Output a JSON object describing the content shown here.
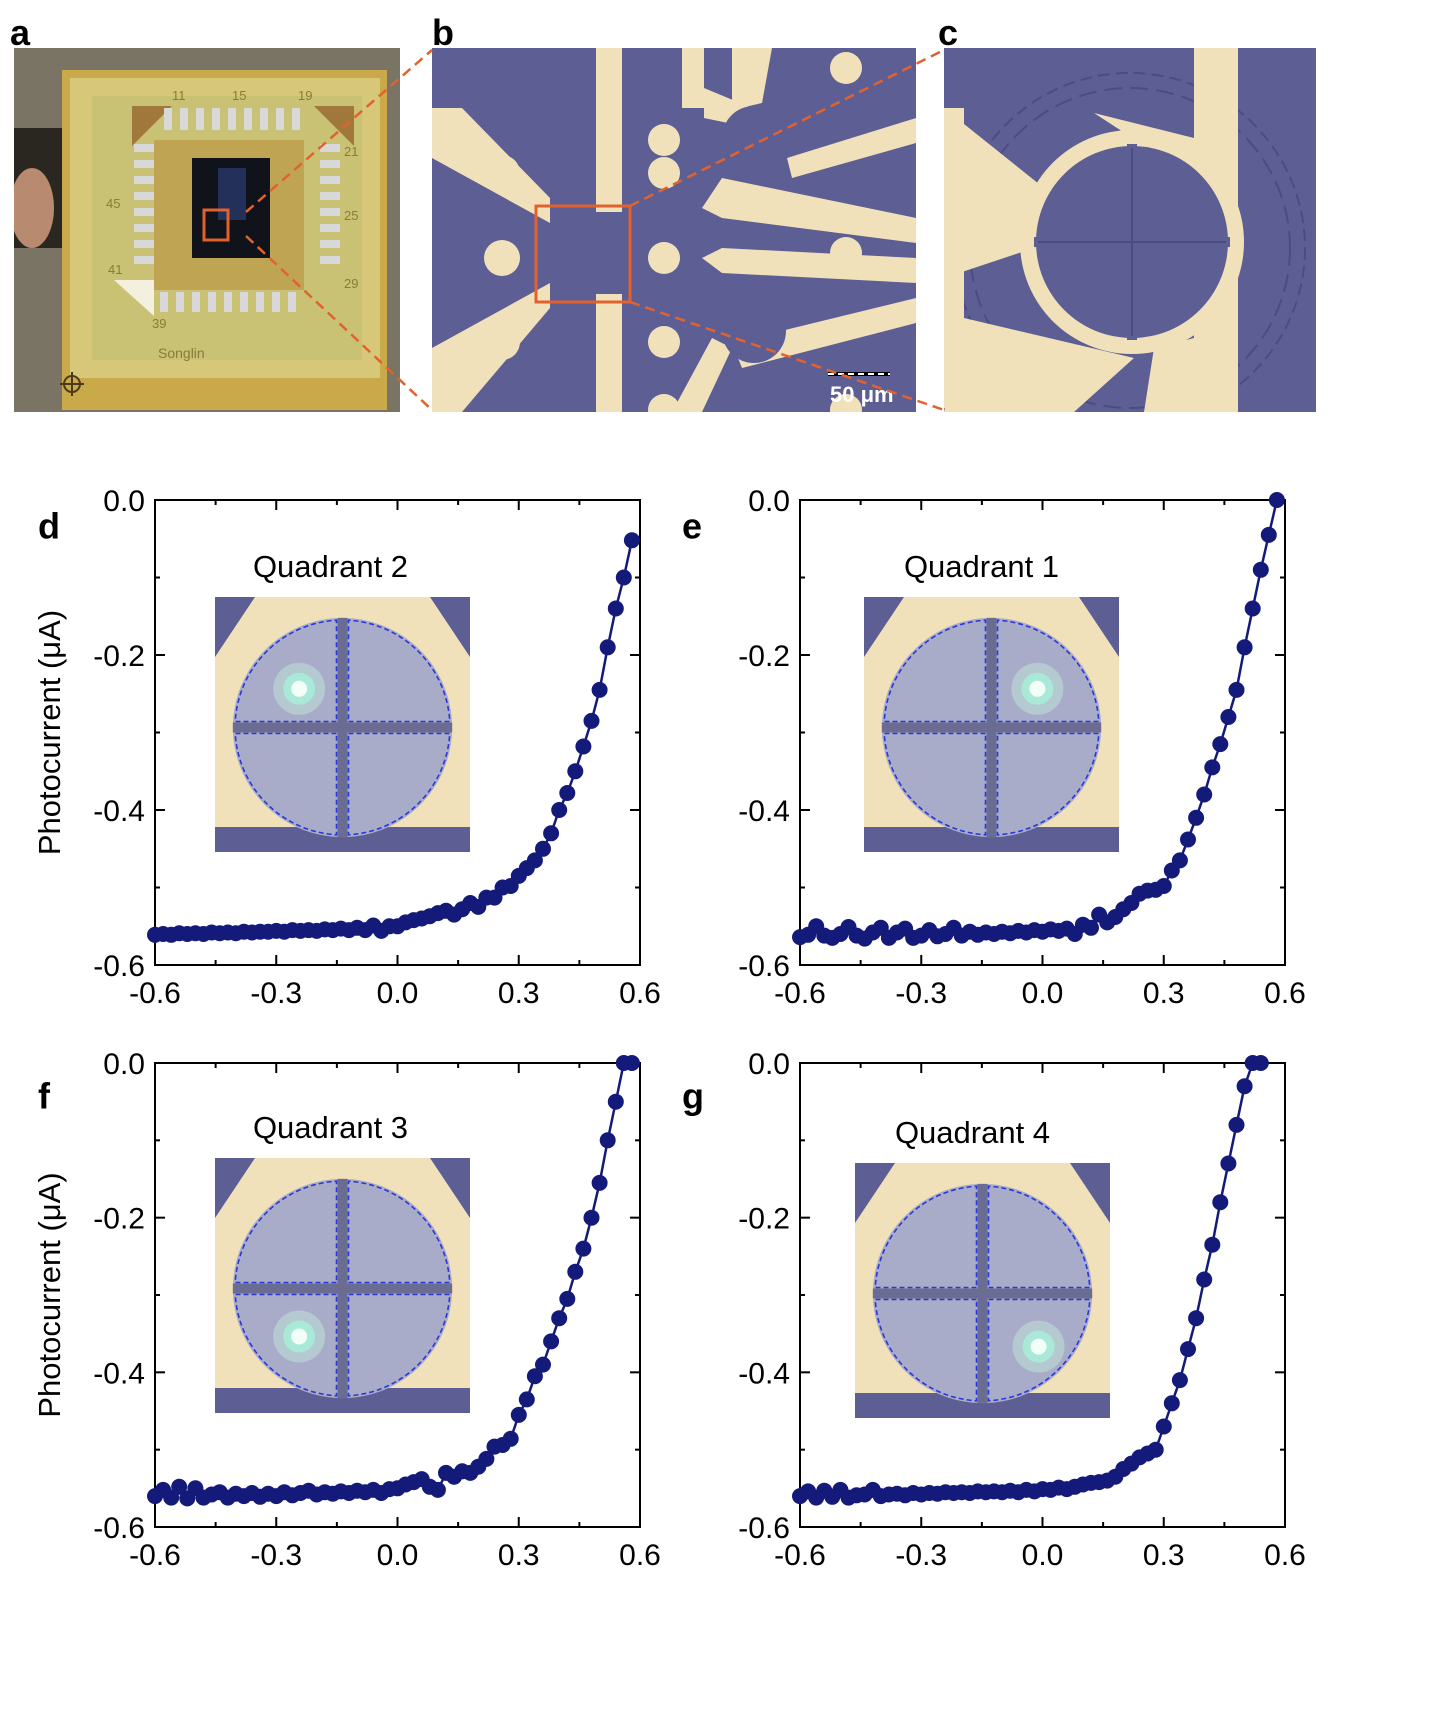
{
  "figure": {
    "panel_a": {
      "letter": "a",
      "board_labels": [
        "11",
        "15",
        "19",
        "21",
        "45",
        "25",
        "41",
        "29",
        "39",
        "Songlin"
      ]
    },
    "panel_b": {
      "letter": "b",
      "scale_bar": "50 μm"
    },
    "panel_c": {
      "letter": "c"
    }
  },
  "colors": {
    "substrate": "#5d5f94",
    "metal": "#f1e1bb",
    "pcb": "#c8b35a",
    "series": "#141a7a",
    "dashed": "#2a36d8",
    "zoom_lines": "#e2622e"
  },
  "chart_data": [
    {
      "letter": "d",
      "type": "scatter",
      "title": "Quadrant 2",
      "quadrant": 2,
      "ylabel": "Photocurrent (μA)",
      "xlabel": "",
      "xlim": [
        -0.6,
        0.6
      ],
      "ylim": [
        -0.6,
        0.0
      ],
      "xticks": [
        "-0.6",
        "-0.3",
        "0.0",
        "0.3",
        "0.6"
      ],
      "yticks": [
        "0.0",
        "-0.2",
        "-0.4",
        "-0.6"
      ],
      "x": [
        -0.6,
        -0.58,
        -0.56,
        -0.54,
        -0.52,
        -0.5,
        -0.48,
        -0.46,
        -0.44,
        -0.42,
        -0.4,
        -0.38,
        -0.36,
        -0.34,
        -0.32,
        -0.3,
        -0.28,
        -0.26,
        -0.24,
        -0.22,
        -0.2,
        -0.18,
        -0.16,
        -0.14,
        -0.12,
        -0.1,
        -0.08,
        -0.06,
        -0.04,
        -0.02,
        0.0,
        0.02,
        0.04,
        0.06,
        0.08,
        0.1,
        0.12,
        0.14,
        0.16,
        0.18,
        0.2,
        0.22,
        0.24,
        0.26,
        0.28,
        0.3,
        0.32,
        0.34,
        0.36,
        0.38,
        0.4,
        0.42,
        0.44,
        0.46,
        0.48,
        0.5,
        0.52,
        0.54,
        0.56,
        0.58
      ],
      "y": [
        -0.561,
        -0.56,
        -0.561,
        -0.559,
        -0.56,
        -0.559,
        -0.56,
        -0.558,
        -0.559,
        -0.558,
        -0.559,
        -0.557,
        -0.558,
        -0.557,
        -0.557,
        -0.556,
        -0.557,
        -0.555,
        -0.556,
        -0.555,
        -0.556,
        -0.554,
        -0.555,
        -0.553,
        -0.555,
        -0.552,
        -0.555,
        -0.549,
        -0.556,
        -0.55,
        -0.55,
        -0.545,
        -0.542,
        -0.54,
        -0.537,
        -0.533,
        -0.53,
        -0.535,
        -0.528,
        -0.52,
        -0.525,
        -0.513,
        -0.513,
        -0.5,
        -0.498,
        -0.485,
        -0.475,
        -0.465,
        -0.45,
        -0.43,
        -0.4,
        -0.378,
        -0.35,
        -0.318,
        -0.285,
        -0.245,
        -0.19,
        -0.14,
        -0.1,
        -0.052
      ]
    },
    {
      "letter": "e",
      "type": "scatter",
      "title": "Quadrant 1",
      "quadrant": 1,
      "ylabel": "",
      "xlabel": "",
      "xlim": [
        -0.6,
        0.6
      ],
      "ylim": [
        -0.6,
        0.0
      ],
      "xticks": [
        "-0.6",
        "-0.3",
        "0.0",
        "0.3",
        "0.6"
      ],
      "yticks": [
        "0.0",
        "-0.2",
        "-0.4",
        "-0.6"
      ],
      "x": [
        -0.6,
        -0.58,
        -0.56,
        -0.54,
        -0.52,
        -0.5,
        -0.48,
        -0.46,
        -0.44,
        -0.42,
        -0.4,
        -0.38,
        -0.36,
        -0.34,
        -0.32,
        -0.3,
        -0.28,
        -0.26,
        -0.24,
        -0.22,
        -0.2,
        -0.18,
        -0.16,
        -0.14,
        -0.12,
        -0.1,
        -0.08,
        -0.06,
        -0.04,
        -0.02,
        0.0,
        0.02,
        0.04,
        0.06,
        0.08,
        0.1,
        0.12,
        0.14,
        0.16,
        0.18,
        0.2,
        0.22,
        0.24,
        0.26,
        0.28,
        0.3,
        0.32,
        0.34,
        0.36,
        0.38,
        0.4,
        0.42,
        0.44,
        0.46,
        0.48,
        0.5,
        0.52,
        0.54,
        0.56,
        0.58
      ],
      "y": [
        -0.564,
        -0.561,
        -0.55,
        -0.562,
        -0.565,
        -0.56,
        -0.551,
        -0.562,
        -0.566,
        -0.558,
        -0.552,
        -0.565,
        -0.558,
        -0.553,
        -0.565,
        -0.562,
        -0.555,
        -0.563,
        -0.56,
        -0.552,
        -0.562,
        -0.557,
        -0.561,
        -0.558,
        -0.56,
        -0.557,
        -0.559,
        -0.556,
        -0.558,
        -0.555,
        -0.557,
        -0.554,
        -0.556,
        -0.553,
        -0.56,
        -0.548,
        -0.552,
        -0.535,
        -0.545,
        -0.538,
        -0.528,
        -0.52,
        -0.508,
        -0.504,
        -0.503,
        -0.498,
        -0.478,
        -0.465,
        -0.438,
        -0.41,
        -0.38,
        -0.345,
        -0.315,
        -0.28,
        -0.245,
        -0.19,
        -0.14,
        -0.09,
        -0.045,
        -0.0
      ]
    },
    {
      "letter": "f",
      "type": "scatter",
      "title": "Quadrant 3",
      "quadrant": 3,
      "ylabel": "Photocurrent (μA)",
      "xlabel": "",
      "xlim": [
        -0.6,
        0.6
      ],
      "ylim": [
        -0.6,
        0.0
      ],
      "xticks": [
        "-0.6",
        "-0.3",
        "0.0",
        "0.3",
        "0.6"
      ],
      "yticks": [
        "0.0",
        "-0.2",
        "-0.4",
        "-0.6"
      ],
      "x": [
        -0.6,
        -0.58,
        -0.56,
        -0.54,
        -0.52,
        -0.5,
        -0.48,
        -0.46,
        -0.44,
        -0.42,
        -0.4,
        -0.38,
        -0.36,
        -0.34,
        -0.32,
        -0.3,
        -0.28,
        -0.26,
        -0.24,
        -0.22,
        -0.2,
        -0.18,
        -0.16,
        -0.14,
        -0.12,
        -0.1,
        -0.08,
        -0.06,
        -0.04,
        -0.02,
        0.0,
        0.02,
        0.04,
        0.06,
        0.08,
        0.1,
        0.12,
        0.14,
        0.16,
        0.18,
        0.2,
        0.22,
        0.24,
        0.26,
        0.28,
        0.3,
        0.32,
        0.34,
        0.36,
        0.38,
        0.4,
        0.42,
        0.44,
        0.46,
        0.48,
        0.5,
        0.52,
        0.54,
        0.56,
        0.58
      ],
      "y": [
        -0.56,
        -0.552,
        -0.562,
        -0.548,
        -0.563,
        -0.55,
        -0.562,
        -0.558,
        -0.555,
        -0.562,
        -0.557,
        -0.56,
        -0.556,
        -0.561,
        -0.557,
        -0.56,
        -0.555,
        -0.559,
        -0.556,
        -0.553,
        -0.558,
        -0.555,
        -0.557,
        -0.554,
        -0.556,
        -0.553,
        -0.555,
        -0.552,
        -0.556,
        -0.551,
        -0.55,
        -0.545,
        -0.542,
        -0.538,
        -0.548,
        -0.552,
        -0.53,
        -0.535,
        -0.528,
        -0.53,
        -0.522,
        -0.512,
        -0.496,
        -0.494,
        -0.486,
        -0.455,
        -0.435,
        -0.405,
        -0.39,
        -0.36,
        -0.33,
        -0.305,
        -0.27,
        -0.24,
        -0.2,
        -0.155,
        -0.1,
        -0.05,
        -0.0,
        -0.0
      ]
    },
    {
      "letter": "g",
      "type": "scatter",
      "title": "Quadrant 4",
      "quadrant": 4,
      "ylabel": "",
      "xlabel": "",
      "xlim": [
        -0.6,
        0.6
      ],
      "ylim": [
        -0.6,
        0.0
      ],
      "xticks": [
        "-0.6",
        "-0.3",
        "0.0",
        "0.3",
        "0.6"
      ],
      "yticks": [
        "0.0",
        "-0.2",
        "-0.4",
        "-0.6"
      ],
      "x": [
        -0.6,
        -0.58,
        -0.56,
        -0.54,
        -0.52,
        -0.5,
        -0.48,
        -0.46,
        -0.44,
        -0.42,
        -0.4,
        -0.38,
        -0.36,
        -0.34,
        -0.32,
        -0.3,
        -0.28,
        -0.26,
        -0.24,
        -0.22,
        -0.2,
        -0.18,
        -0.16,
        -0.14,
        -0.12,
        -0.1,
        -0.08,
        -0.06,
        -0.04,
        -0.02,
        0.0,
        0.02,
        0.04,
        0.06,
        0.08,
        0.1,
        0.12,
        0.14,
        0.16,
        0.18,
        0.2,
        0.22,
        0.24,
        0.26,
        0.28,
        0.3,
        0.32,
        0.34,
        0.36,
        0.38,
        0.4,
        0.42,
        0.44,
        0.46,
        0.48,
        0.5,
        0.52,
        0.54
      ],
      "y": [
        -0.56,
        -0.554,
        -0.562,
        -0.553,
        -0.561,
        -0.552,
        -0.562,
        -0.559,
        -0.558,
        -0.552,
        -0.56,
        -0.558,
        -0.557,
        -0.559,
        -0.556,
        -0.558,
        -0.556,
        -0.557,
        -0.555,
        -0.556,
        -0.555,
        -0.556,
        -0.554,
        -0.555,
        -0.554,
        -0.555,
        -0.553,
        -0.555,
        -0.552,
        -0.554,
        -0.551,
        -0.552,
        -0.549,
        -0.551,
        -0.548,
        -0.545,
        -0.543,
        -0.542,
        -0.54,
        -0.535,
        -0.525,
        -0.518,
        -0.51,
        -0.505,
        -0.5,
        -0.47,
        -0.44,
        -0.41,
        -0.37,
        -0.33,
        -0.28,
        -0.235,
        -0.18,
        -0.13,
        -0.08,
        -0.03,
        0.0,
        0.0
      ]
    }
  ]
}
